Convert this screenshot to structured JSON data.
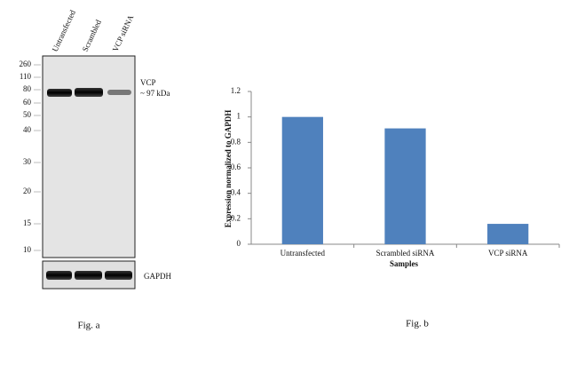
{
  "blot": {
    "lanes": [
      "Untransfected",
      "Scrambled",
      "VCP siRNA"
    ],
    "markers": [
      "260",
      "110",
      "80",
      "60",
      "50",
      "40",
      "30",
      "20",
      "15",
      "10"
    ],
    "target": "VCP",
    "target_size": "~ 97 kDa",
    "control": "GAPDH",
    "caption": "Fig. a"
  },
  "chart_data": {
    "type": "bar",
    "ylabel": "Expression normalized to GAPDH",
    "xlabel": "Samples",
    "categories": [
      "Untransfected",
      "Scrambled siRNA",
      "VCP siRNA"
    ],
    "values": [
      1.0,
      0.91,
      0.16
    ],
    "color": "#4f81bd",
    "ylim": [
      0,
      1.2
    ],
    "yticks": [
      0,
      0.2,
      0.4,
      0.6,
      0.8,
      1,
      1.2
    ],
    "caption": "Fig. b"
  }
}
